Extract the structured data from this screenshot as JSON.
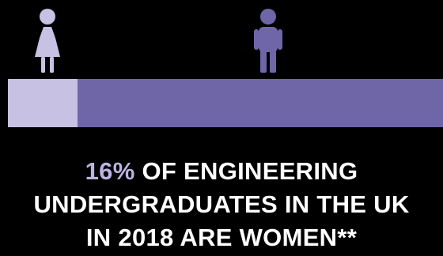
{
  "chart_data": {
    "type": "bar",
    "stacked": true,
    "orientation": "horizontal",
    "categories": [
      "women",
      "men"
    ],
    "values": [
      16,
      84
    ],
    "xlim": [
      0,
      100
    ]
  },
  "colors": {
    "background": "#000000",
    "women": "#c7c1e4",
    "men": "#6f66a8",
    "highlight_text": "#bdb3e0",
    "body_text": "#ffffff"
  },
  "icons": {
    "women": "female-figure-icon",
    "men": "male-figure-icon"
  },
  "caption": {
    "highlight": "16%",
    "line1_rest": " OF ENGINEERING",
    "line2": "UNDERGRADUATES IN THE UK",
    "line3": "IN 2018 ARE WOMEN**"
  }
}
